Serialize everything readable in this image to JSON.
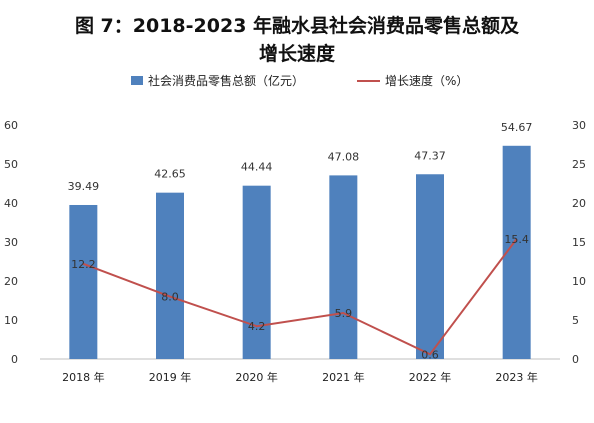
{
  "chart_data": {
    "type": "bar",
    "title_line1": "图 7：2018-2023 年融水县社会消费品零售总额及",
    "title_line2": "增长速度",
    "categories": [
      "2018 年",
      "2019 年",
      "2020 年",
      "2021 年",
      "2022 年",
      "2023 年"
    ],
    "series": [
      {
        "name": "社会消费品零售总额（亿元）",
        "kind": "bar",
        "axis": "left",
        "color": "#4f81bd",
        "values": [
          39.49,
          42.65,
          44.44,
          47.08,
          47.37,
          54.67
        ],
        "labels": [
          "39.49",
          "42.65",
          "44.44",
          "47.08",
          "47.37",
          "54.67"
        ]
      },
      {
        "name": "增长速度（%）",
        "kind": "line",
        "axis": "right",
        "color": "#c0504d",
        "values": [
          12.2,
          8.0,
          4.2,
          5.9,
          0.6,
          15.4
        ],
        "labels": [
          "12.2",
          "8.0",
          "4.2",
          "5.9",
          "0.6",
          "15.4"
        ]
      }
    ],
    "y_left": {
      "min": 0,
      "max": 60,
      "ticks": [
        "0",
        "10",
        "20",
        "30",
        "40",
        "50",
        "60"
      ]
    },
    "y_right": {
      "min": 0,
      "max": 30,
      "ticks": [
        "0",
        "5",
        "10",
        "15",
        "20",
        "25",
        "30"
      ]
    },
    "grid": false,
    "legend_position": "top"
  }
}
